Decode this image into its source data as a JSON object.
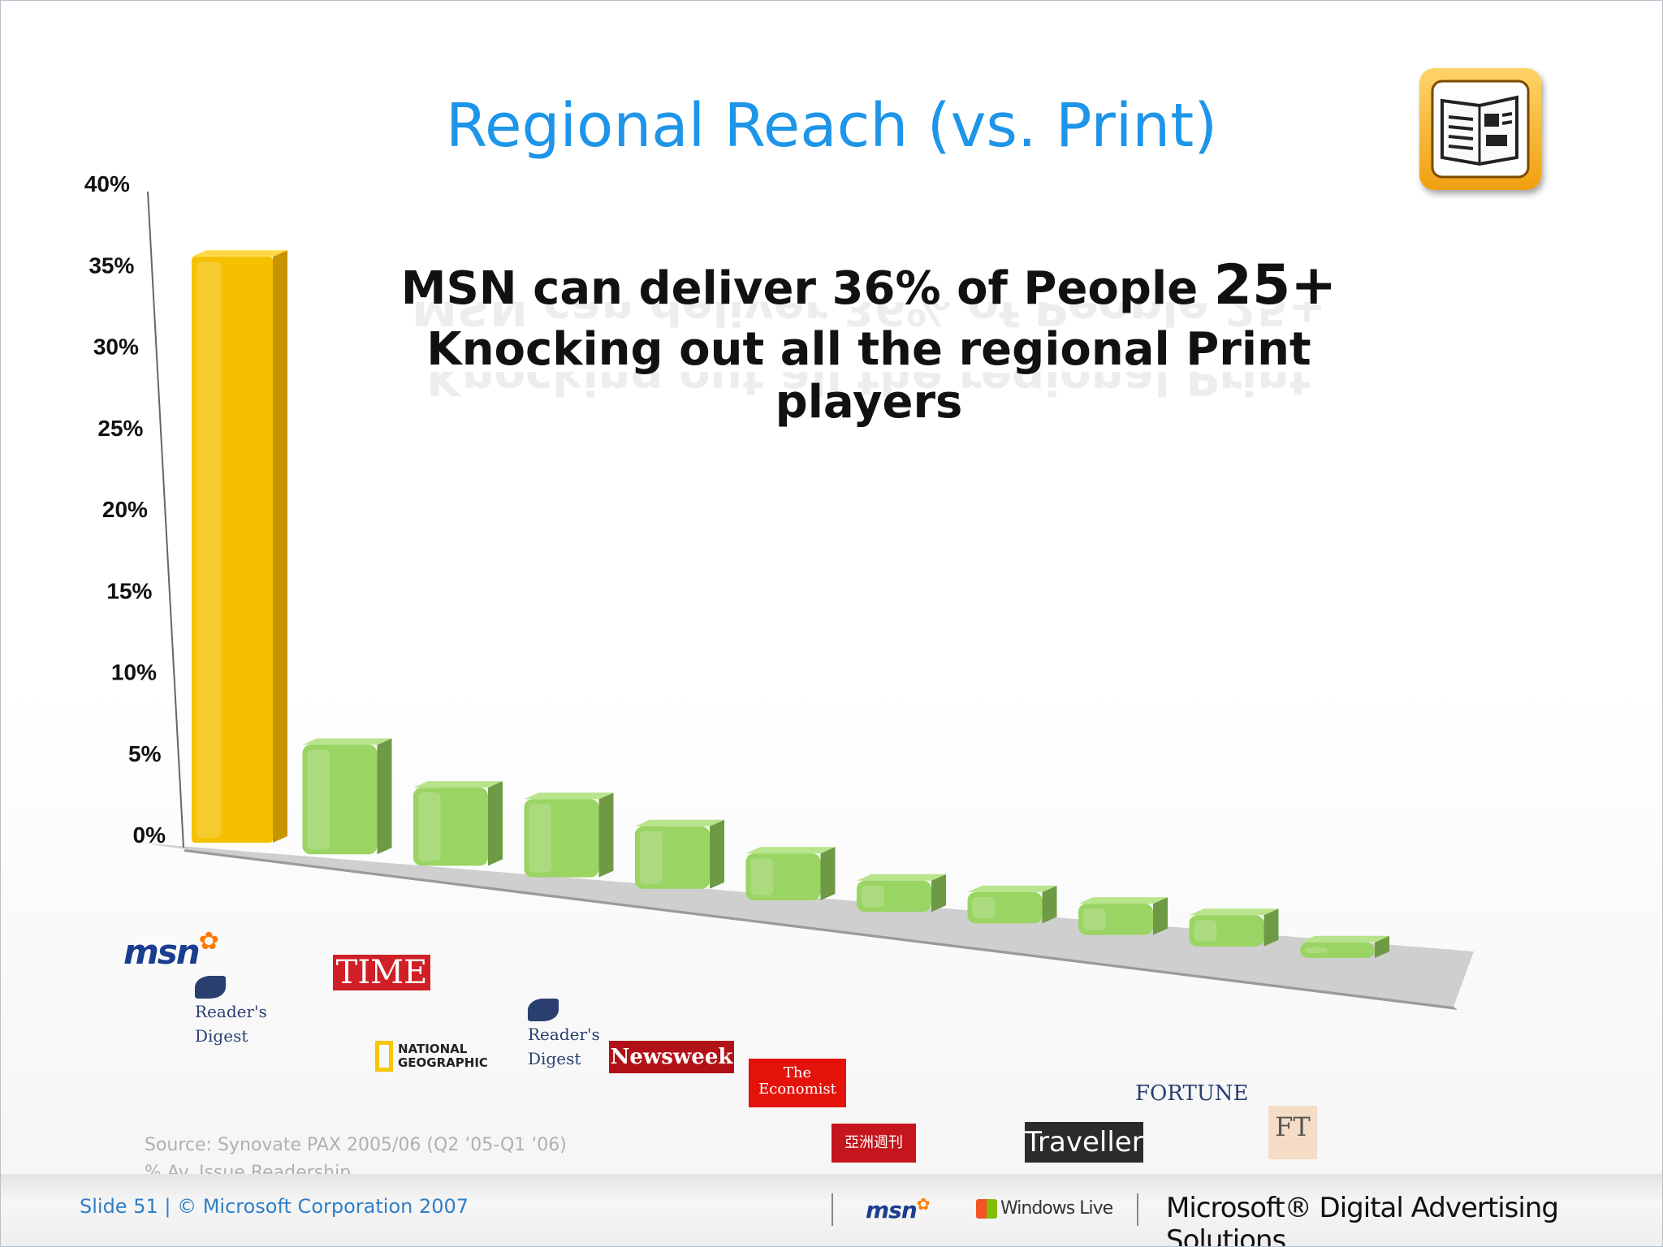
{
  "title": "Regional Reach (vs. Print)",
  "headline": {
    "line1_text": "MSN can deliver 36% of People ",
    "line1_emphasis": "25+",
    "line2": "Knocking out all the regional Print players"
  },
  "chart_data": {
    "type": "bar",
    "categories": [
      "MSN",
      "Reader's Digest",
      "TIME",
      "National Geographic",
      "Reader's Digest",
      "Newsweek",
      "The Economist",
      "Yazhou Zhoukan",
      "Business Traveller",
      "Fortune",
      "FT"
    ],
    "values": [
      36,
      7,
      5,
      5,
      4,
      3,
      2,
      2,
      2,
      2,
      1
    ],
    "ylim": [
      0,
      40
    ],
    "yticks": [
      "0%",
      "5%",
      "10%",
      "15%",
      "20%",
      "25%",
      "30%",
      "35%",
      "40%"
    ],
    "colors": {
      "msn": "#f5c000",
      "print": "#9ad463"
    },
    "grid": false,
    "style": "3d"
  },
  "logos": {
    "msn": "msn",
    "readers_digest": "Reader's Digest",
    "time": "TIME",
    "national_geographic": "NATIONAL GEOGRAPHIC",
    "newsweek": "Newsweek",
    "economist": "The Economist",
    "yazhou": "亞洲週刊",
    "business_traveller": "Traveller",
    "fortune": "FORTUNE",
    "ft": "FT"
  },
  "source": {
    "line1": "Source: Synovate PAX 2005/06 (Q2 ’05-Q1 ’06)",
    "line2": "% Av. Issue Readership,"
  },
  "footer": {
    "slide_info": "Slide 51 | © Microsoft Corporation 2007",
    "msn": "msn",
    "windows_live": "Windows Live",
    "mdas": "Microsoft® Digital Advertising Solutions"
  },
  "icons": {
    "top_right": "newspaper-icon"
  }
}
